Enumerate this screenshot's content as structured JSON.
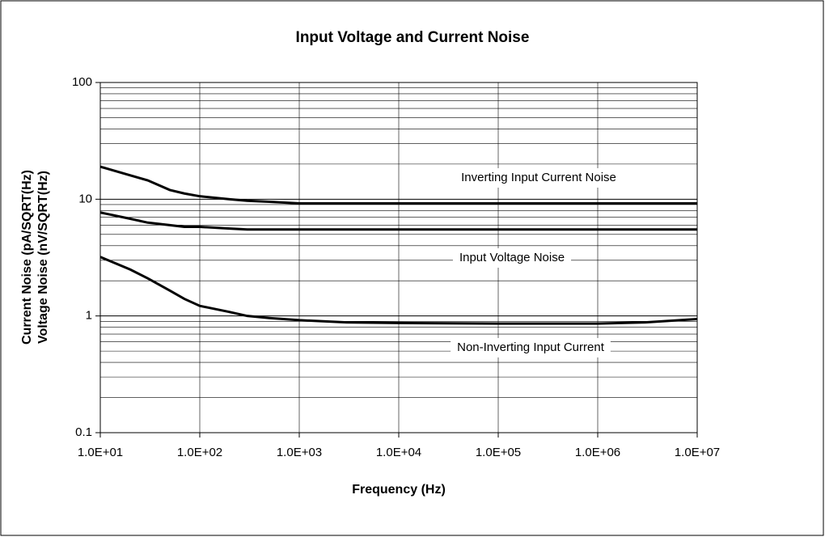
{
  "chart_data": {
    "type": "line",
    "title": "Input Voltage and Current Noise",
    "xlabel": "Frequency (Hz)",
    "ylabel": [
      "Current Noise (pA/SQRT(Hz)",
      "Voltage Noise (nV/SQRT(Hz)"
    ],
    "xscale": "log",
    "yscale": "log",
    "grid": true,
    "y_minor_grid": true,
    "xlim": [
      10,
      10000000
    ],
    "ylim": [
      0.1,
      100
    ],
    "xticks": [
      {
        "value": 10,
        "label": "1.0E+01"
      },
      {
        "value": 100,
        "label": "1.0E+02"
      },
      {
        "value": 1000,
        "label": "1.0E+03"
      },
      {
        "value": 10000,
        "label": "1.0E+04"
      },
      {
        "value": 100000,
        "label": "1.0E+05"
      },
      {
        "value": 1000000,
        "label": "1.0E+06"
      },
      {
        "value": 10000000,
        "label": "1.0E+07"
      }
    ],
    "yticks": [
      0.1,
      1,
      10,
      100
    ],
    "x": [
      10,
      20,
      30,
      50,
      70,
      100,
      200,
      300,
      500,
      1000,
      3000,
      10000,
      100000,
      1000000,
      3000000,
      10000000
    ],
    "series": [
      {
        "name": "Inverting Input Current Noise",
        "color": "#000000",
        "values": [
          19,
          16,
          14.5,
          12,
          11.2,
          10.6,
          10,
          9.7,
          9.5,
          9.2,
          9.2,
          9.2,
          9.2,
          9.2,
          9.2,
          9.2
        ]
      },
      {
        "name": "Input Voltage Noise",
        "color": "#000000",
        "values": [
          7.7,
          6.8,
          6.3,
          6.0,
          5.8,
          5.8,
          5.6,
          5.5,
          5.5,
          5.5,
          5.5,
          5.5,
          5.5,
          5.5,
          5.5,
          5.5
        ]
      },
      {
        "name": "Non-Inverting Input Current",
        "color": "#000000",
        "values": [
          3.2,
          2.5,
          2.1,
          1.65,
          1.4,
          1.22,
          1.08,
          1.0,
          0.96,
          0.92,
          0.88,
          0.87,
          0.86,
          0.86,
          0.88,
          0.94
        ]
      }
    ]
  }
}
